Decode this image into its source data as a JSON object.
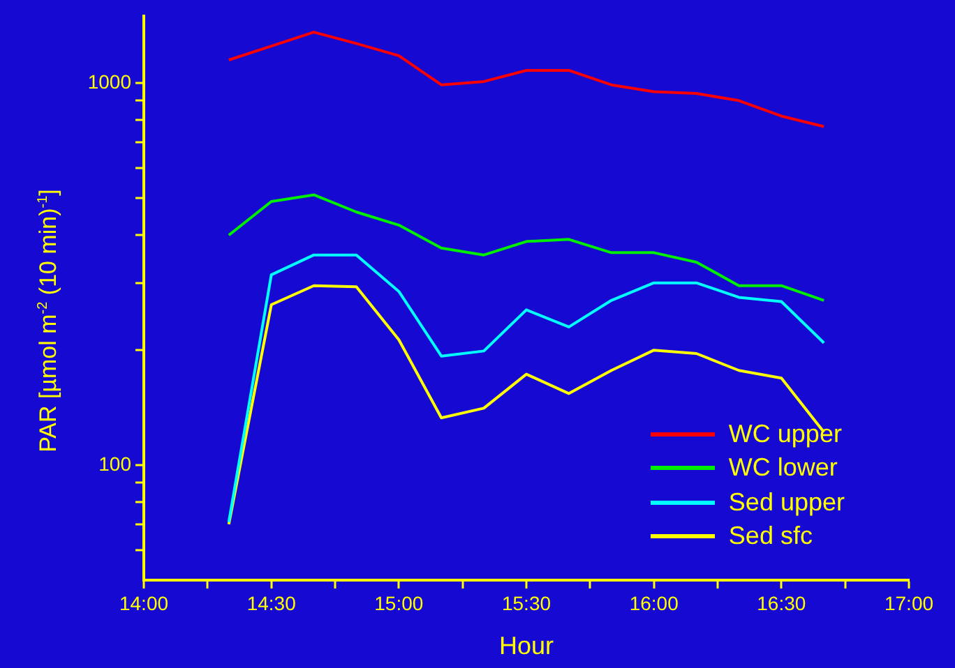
{
  "chart_data": {
    "type": "line",
    "xlabel": "Hour",
    "ylabel": "PAR [µmol m$^{-2}$ (10 min)$^{-1}$]",
    "x": [
      14.3333,
      14.5,
      14.6667,
      14.8333,
      15,
      15.1667,
      15.3333,
      15.5,
      15.6667,
      15.8333,
      16,
      16.1667,
      16.3333,
      16.5,
      16.6667
    ],
    "series": [
      {
        "name": "WC upper",
        "color": "#ff0000",
        "values": [
          1150,
          1250,
          1360,
          1270,
          1180,
          990,
          1010,
          1080,
          1080,
          990,
          950,
          940,
          900,
          820,
          770
        ]
      },
      {
        "name": "WC lower",
        "color": "#00ee00",
        "values": [
          400,
          490,
          510,
          460,
          425,
          370,
          355,
          385,
          390,
          360,
          360,
          340,
          295,
          295,
          270
        ]
      },
      {
        "name": "Sed upper",
        "color": "#00ffff",
        "values": [
          71,
          315,
          355,
          355,
          285,
          193,
          199,
          255,
          230,
          270,
          300,
          300,
          275,
          268,
          209
        ]
      },
      {
        "name": "Sed sfc",
        "color": "#ffff00",
        "values": [
          70,
          263,
          295,
          293,
          213,
          133,
          141,
          173,
          154,
          177,
          200,
          196,
          177,
          169,
          122
        ]
      }
    ],
    "xlim": [
      14,
      17
    ],
    "xticks": [
      {
        "value": 14,
        "label": "14:00"
      },
      {
        "value": 14.25,
        "label": null
      },
      {
        "value": 14.5,
        "label": "14:30"
      },
      {
        "value": 14.75,
        "label": null
      },
      {
        "value": 15,
        "label": "15:00"
      },
      {
        "value": 15.25,
        "label": null
      },
      {
        "value": 15.5,
        "label": "15:30"
      },
      {
        "value": 15.75,
        "label": null
      },
      {
        "value": 16,
        "label": "16:00"
      },
      {
        "value": 16.25,
        "label": null
      },
      {
        "value": 16.5,
        "label": "16:30"
      },
      {
        "value": 16.75,
        "label": null
      },
      {
        "value": 17,
        "label": "17:00"
      }
    ],
    "ylim": [
      50,
      1500
    ],
    "yticks": [
      {
        "value": 60,
        "label": null
      },
      {
        "value": 70,
        "label": null
      },
      {
        "value": 80,
        "label": null
      },
      {
        "value": 90,
        "label": null
      },
      100,
      {
        "value": 200,
        "label": null
      },
      {
        "value": 300,
        "label": null
      },
      {
        "value": 400,
        "label": null
      },
      {
        "value": 500,
        "label": null
      },
      {
        "value": 600,
        "label": null
      },
      {
        "value": 700,
        "label": null
      },
      {
        "value": 800,
        "label": null
      },
      {
        "value": 900,
        "label": null
      },
      1000
    ],
    "log": "y",
    "grid": false,
    "legend": "bottom right",
    "marker": "none",
    "line_style": "solid"
  }
}
